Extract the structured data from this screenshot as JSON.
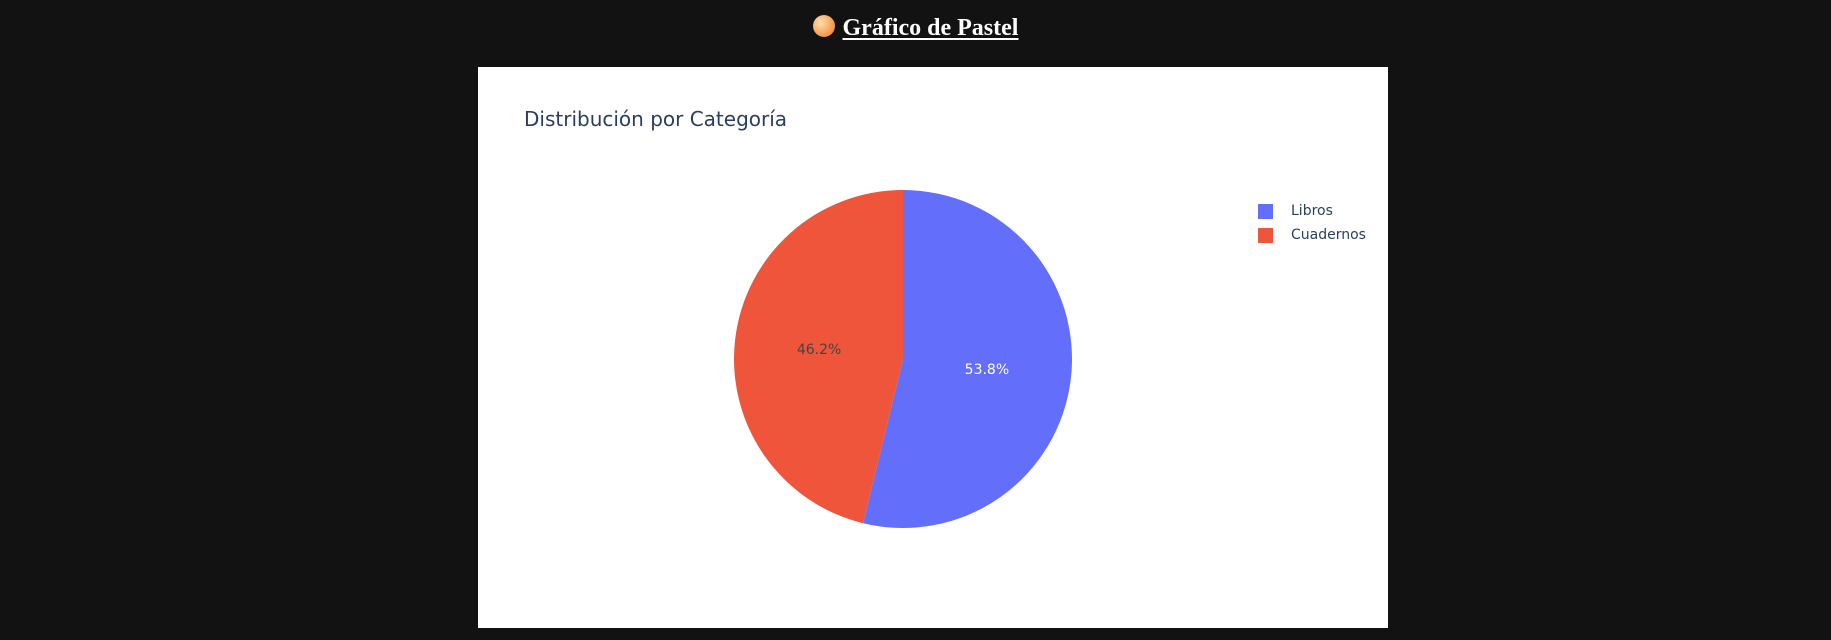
{
  "header": {
    "title": "Gráfico de Pastel",
    "icon": "pie-emoji-icon"
  },
  "chart_data": {
    "type": "pie",
    "title": "Distribución por Categoría",
    "categories": [
      "Libros",
      "Cuadernos"
    ],
    "values": [
      53.8,
      46.2
    ],
    "labels": [
      "53.8%",
      "46.2%"
    ],
    "colors": [
      "#636efa",
      "#ef553b"
    ],
    "label_colors": [
      "#ffffff",
      "#444444"
    ],
    "legend_position": "top-right",
    "sort": "descending",
    "direction": "clockwise",
    "start": "top"
  }
}
